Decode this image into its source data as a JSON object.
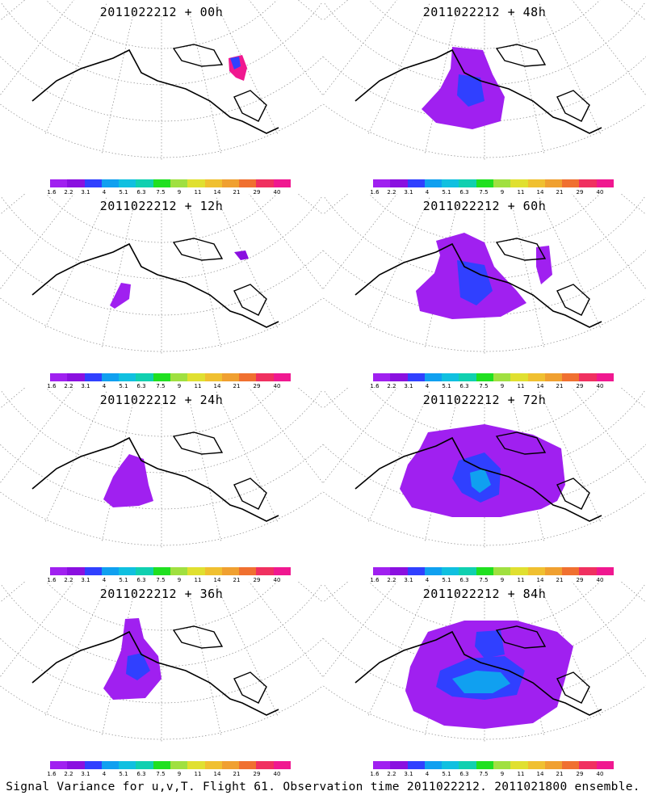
{
  "figure": {
    "caption": "Signal Variance for u,v,T. Flight 61. Observation time 2011022212. 2011021800 ensemble."
  },
  "colorbar": {
    "labels": [
      "1.6",
      "2.2",
      "3.1",
      "4",
      "5.1",
      "6.3",
      "7.5",
      "9",
      "11",
      "14",
      "21",
      "29",
      "40"
    ],
    "colors": [
      "#a020f0",
      "#8a10e0",
      "#3040ff",
      "#10a0f0",
      "#10c0e0",
      "#10d0b0",
      "#20e020",
      "#a0e040",
      "#e0e030",
      "#f0c030",
      "#f0a030",
      "#f07030",
      "#f03060",
      "#f01890"
    ]
  },
  "panels": [
    {
      "title": "2011022212 + 00h",
      "lead": 0
    },
    {
      "title": "2011022212 + 48h",
      "lead": 48
    },
    {
      "title": "2011022212 + 12h",
      "lead": 12
    },
    {
      "title": "2011022212 + 60h",
      "lead": 60
    },
    {
      "title": "2011022212 + 24h",
      "lead": 24
    },
    {
      "title": "2011022212 + 72h",
      "lead": 72
    },
    {
      "title": "2011022212 + 36h",
      "lead": 36
    },
    {
      "title": "2011022212 + 84h",
      "lead": 84
    }
  ]
}
